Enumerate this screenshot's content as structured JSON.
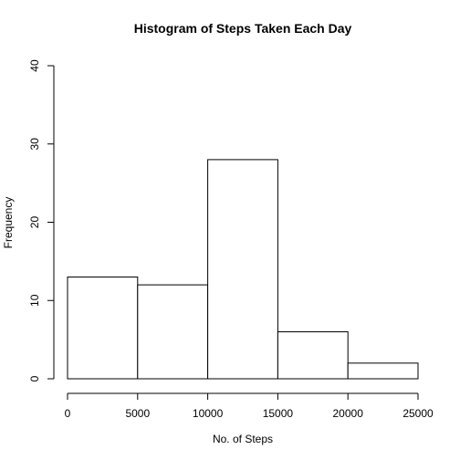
{
  "chart_data": {
    "type": "bar",
    "title": "Histogram of Steps Taken Each Day",
    "xlabel": "No. of Steps",
    "ylabel": "Frequency",
    "bins": [
      {
        "from": 0,
        "to": 5000,
        "count": 13
      },
      {
        "from": 5000,
        "to": 10000,
        "count": 12
      },
      {
        "from": 10000,
        "to": 15000,
        "count": 28
      },
      {
        "from": 15000,
        "to": 20000,
        "count": 6
      },
      {
        "from": 20000,
        "to": 25000,
        "count": 2
      }
    ],
    "xlim": [
      0,
      25000
    ],
    "ylim": [
      0,
      40
    ],
    "x_ticks": [
      "0",
      "5000",
      "10000",
      "15000",
      "20000",
      "25000"
    ],
    "y_ticks": [
      "0",
      "10",
      "20",
      "30",
      "40"
    ],
    "grid": false,
    "legend": "none"
  }
}
